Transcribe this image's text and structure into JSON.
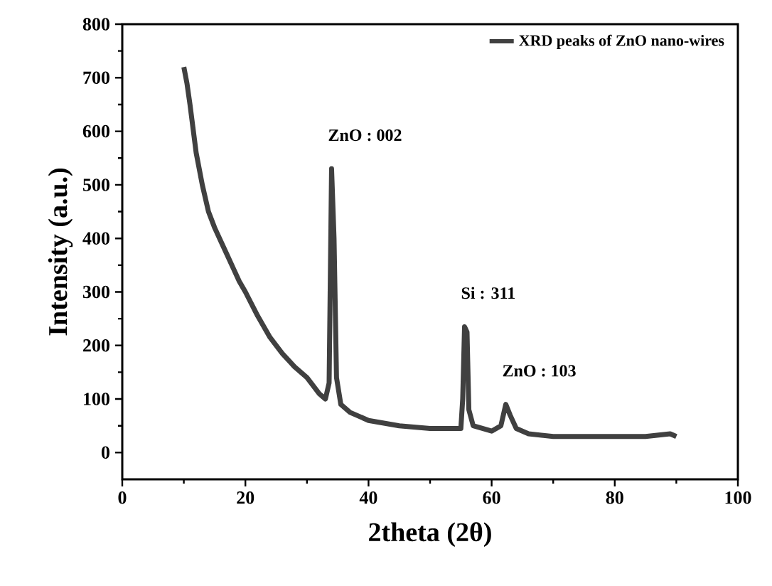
{
  "chart_data": {
    "type": "line",
    "xlabel": "2theta (2θ)",
    "ylabel": "Intensity (a.u.)",
    "xlim": [
      0,
      100
    ],
    "xticks": [
      0,
      20,
      40,
      60,
      80,
      100
    ],
    "ylim": [
      -50,
      800
    ],
    "yticks": [
      0,
      100,
      200,
      300,
      400,
      500,
      600,
      700,
      800
    ],
    "legend": "top right",
    "series": [
      {
        "name": "XRD peaks of ZnO nano-wires",
        "color": "#404040",
        "x": [
          10,
          10.5,
          11,
          12,
          13,
          14,
          15,
          16,
          17,
          18,
          19,
          20,
          22,
          24,
          26,
          28,
          30,
          32,
          33,
          33.6,
          34,
          34.4,
          34.8,
          35.5,
          37,
          40,
          45,
          50,
          55,
          55.3,
          55.6,
          56,
          56.3,
          57,
          60,
          61.5,
          62.3,
          63,
          64,
          66,
          70,
          75,
          80,
          85,
          89,
          90
        ],
        "values": [
          720,
          690,
          650,
          560,
          500,
          450,
          420,
          395,
          370,
          345,
          320,
          300,
          255,
          215,
          185,
          160,
          140,
          110,
          100,
          130,
          530,
          400,
          140,
          90,
          75,
          60,
          50,
          45,
          45,
          100,
          235,
          225,
          80,
          50,
          40,
          50,
          90,
          70,
          45,
          35,
          30,
          30,
          30,
          30,
          35,
          30
        ]
      }
    ],
    "annotations": [
      {
        "text": "ZnO : 002",
        "x": 34,
        "y": 530
      },
      {
        "text": "Si : 311",
        "x": 55.6,
        "y": 235
      },
      {
        "text": "ZnO : 103",
        "x": 62.3,
        "y": 90
      }
    ]
  }
}
